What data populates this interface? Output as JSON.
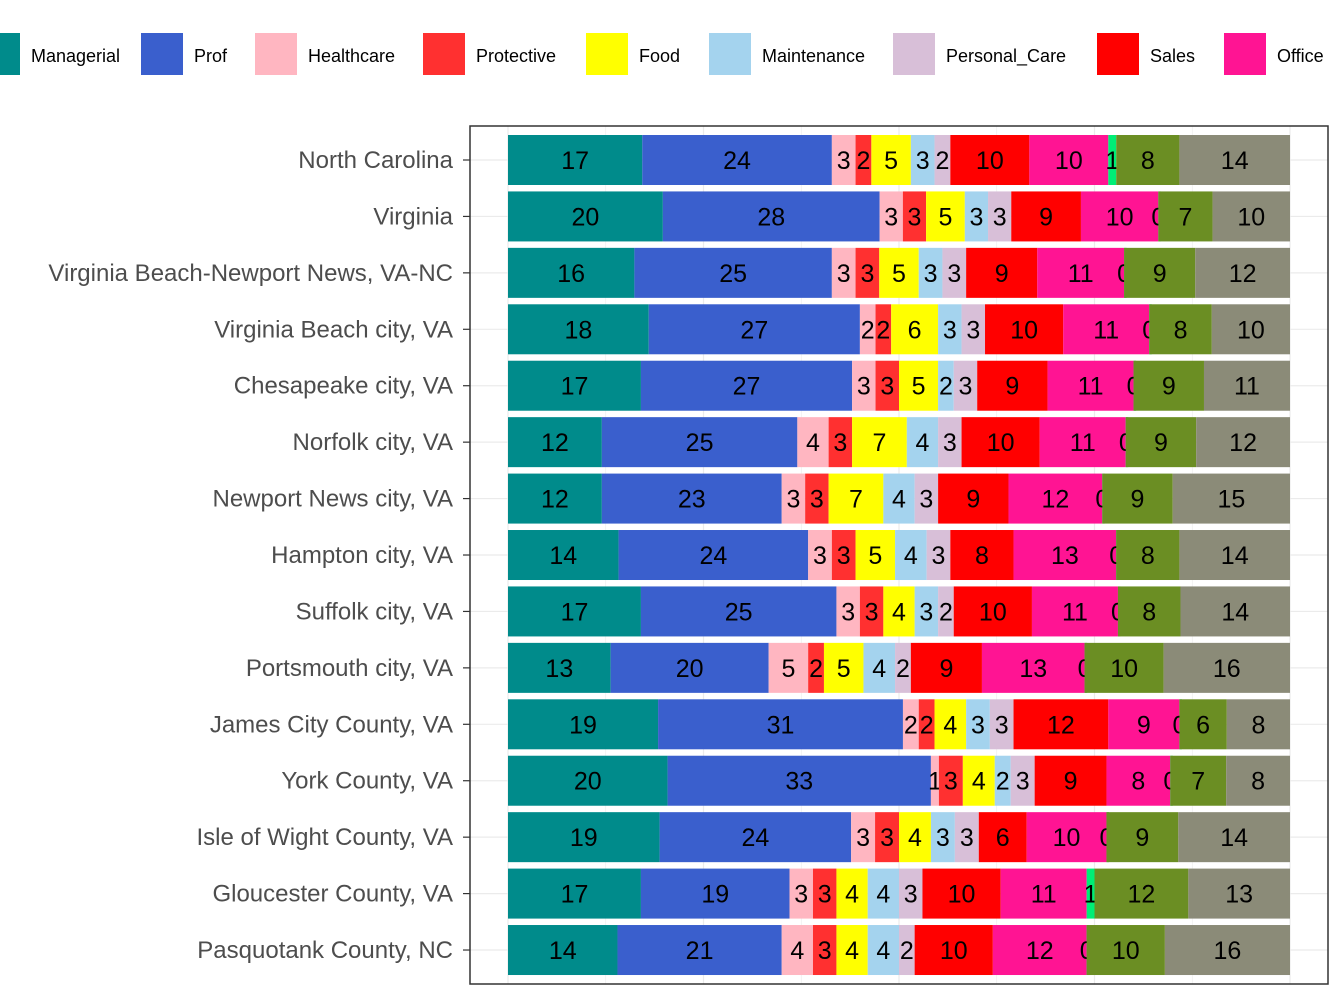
{
  "chart_data": {
    "type": "bar",
    "orientation": "horizontal",
    "stacked": true,
    "title": "",
    "xlabel": "",
    "ylabel": "",
    "legend_position": "top",
    "grid": true,
    "categories": [
      "North Carolina",
      "Virginia",
      "Virginia Beach-Newport News, VA-NC",
      "Virginia Beach city, VA",
      "Chesapeake city, VA",
      "Norfolk city, VA",
      "Newport News city, VA",
      "Hampton city, VA",
      "Suffolk city, VA",
      "Portsmouth city, VA",
      "James City County, VA",
      "York County, VA",
      "Isle of Wight County, VA",
      "Gloucester County, VA",
      "Pasquotank County, NC"
    ],
    "series": [
      {
        "name": "Managerial",
        "color": "#008B8B",
        "values": [
          17,
          20,
          16,
          18,
          17,
          12,
          12,
          14,
          17,
          13,
          19,
          20,
          19,
          17,
          14
        ]
      },
      {
        "name": "Prof",
        "color": "#3A5FCD",
        "values": [
          24,
          28,
          25,
          27,
          27,
          25,
          23,
          24,
          25,
          20,
          31,
          33,
          24,
          19,
          21
        ]
      },
      {
        "name": "Healthcare",
        "color": "#FFB6C1",
        "values": [
          3,
          3,
          3,
          2,
          3,
          4,
          3,
          3,
          3,
          5,
          2,
          1,
          3,
          3,
          4
        ]
      },
      {
        "name": "Protective",
        "color": "#FF3030",
        "values": [
          2,
          3,
          3,
          2,
          3,
          3,
          3,
          3,
          3,
          2,
          2,
          3,
          3,
          3,
          3
        ]
      },
      {
        "name": "Food",
        "color": "#FFFF00",
        "values": [
          5,
          5,
          5,
          6,
          5,
          7,
          7,
          5,
          4,
          5,
          4,
          4,
          4,
          4,
          4
        ]
      },
      {
        "name": "Maintenance",
        "color": "#A4D3EE",
        "values": [
          3,
          3,
          3,
          3,
          2,
          4,
          4,
          4,
          3,
          4,
          3,
          2,
          3,
          4,
          4
        ]
      },
      {
        "name": "Personal_Care",
        "color": "#D8BFD8",
        "values": [
          2,
          3,
          3,
          3,
          3,
          3,
          3,
          3,
          2,
          2,
          3,
          3,
          3,
          3,
          2
        ]
      },
      {
        "name": "Sales",
        "color": "#FF0000",
        "values": [
          10,
          9,
          9,
          10,
          9,
          10,
          9,
          8,
          10,
          9,
          12,
          9,
          6,
          10,
          10
        ]
      },
      {
        "name": "Office",
        "color": "#FF1493",
        "values": [
          10,
          10,
          11,
          11,
          11,
          11,
          12,
          13,
          11,
          13,
          9,
          8,
          10,
          11,
          12
        ]
      },
      {
        "name": "",
        "color": "#00EE76",
        "values": [
          1,
          0,
          0,
          0,
          0,
          0,
          0,
          0,
          0,
          0,
          0,
          0,
          0,
          1,
          0
        ]
      },
      {
        "name": "",
        "color": "#6B8E23",
        "values": [
          8,
          7,
          9,
          8,
          9,
          9,
          9,
          8,
          8,
          10,
          6,
          7,
          9,
          12,
          10
        ]
      },
      {
        "name": "",
        "color": "#8B8B78",
        "values": [
          14,
          10,
          12,
          10,
          11,
          12,
          15,
          14,
          14,
          16,
          8,
          8,
          14,
          13,
          16
        ]
      }
    ]
  }
}
